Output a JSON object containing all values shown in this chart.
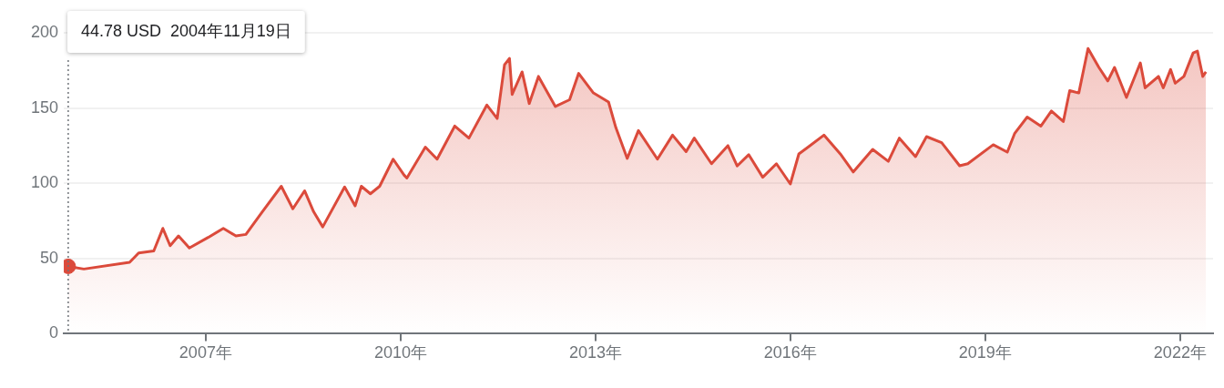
{
  "chart_data": {
    "type": "area",
    "x": [
      "2004-11-19",
      "2005-02-15",
      "2005-10-30",
      "2005-12-20",
      "2006-03-15",
      "2006-05-05",
      "2006-06-15",
      "2006-08-01",
      "2006-10-01",
      "2007-01-15",
      "2007-04-10",
      "2007-06-20",
      "2007-08-15",
      "2007-11-15",
      "2008-03-01",
      "2008-05-05",
      "2008-07-10",
      "2008-08-30",
      "2008-10-20",
      "2009-02-20",
      "2009-04-20",
      "2009-05-25",
      "2009-07-15",
      "2009-09-05",
      "2009-11-20",
      "2010-01-20",
      "2010-02-05",
      "2010-05-20",
      "2010-07-25",
      "2010-11-01",
      "2011-01-20",
      "2011-05-01",
      "2011-06-28",
      "2011-08-08",
      "2011-09-05",
      "2011-09-20",
      "2011-11-15",
      "2011-12-25",
      "2012-02-15",
      "2012-05-20",
      "2012-08-08",
      "2012-09-28",
      "2012-12-20",
      "2013-03-15",
      "2013-04-25",
      "2013-06-28",
      "2013-08-30",
      "2013-12-15",
      "2014-03-10",
      "2014-05-25",
      "2014-07-10",
      "2014-10-15",
      "2015-01-15",
      "2015-03-08",
      "2015-05-12",
      "2015-07-30",
      "2015-10-15",
      "2016-01-01",
      "2016-02-18",
      "2016-04-10",
      "2016-07-08",
      "2016-10-08",
      "2016-12-20",
      "2017-04-08",
      "2017-07-05",
      "2017-09-05",
      "2017-12-05",
      "2018-02-05",
      "2018-05-01",
      "2018-08-10",
      "2018-09-25",
      "2019-02-15",
      "2019-05-05",
      "2019-06-15",
      "2019-08-25",
      "2019-11-10",
      "2020-01-08",
      "2020-03-15",
      "2020-04-20",
      "2020-06-10",
      "2020-08-01",
      "2020-10-01",
      "2020-11-20",
      "2020-12-28",
      "2021-03-05",
      "2021-05-22",
      "2021-06-18",
      "2021-09-01",
      "2021-09-28",
      "2021-11-08",
      "2021-12-04",
      "2022-01-22",
      "2022-03-15",
      "2022-04-08",
      "2022-05-08",
      "2022-05-26"
    ],
    "series": [
      {
        "color": "#db4a3b",
        "values": [
          44.78,
          43,
          47.5,
          53.7,
          55,
          70,
          58.5,
          65,
          57,
          64,
          70,
          65,
          66,
          81,
          98,
          83,
          95,
          81,
          71,
          97.5,
          85,
          98,
          93,
          98,
          116,
          105.5,
          103.5,
          124,
          116,
          138,
          130,
          152,
          143,
          178.7,
          183,
          159,
          174,
          153,
          171,
          151,
          155.5,
          173,
          160,
          154,
          137,
          116.5,
          135,
          116,
          132,
          121,
          130,
          113,
          125,
          111.5,
          119,
          104,
          113,
          99.5,
          119.5,
          124,
          132,
          119.5,
          107.5,
          122.5,
          114.6,
          130,
          117.7,
          131,
          127,
          111.6,
          113,
          125.6,
          120.7,
          133,
          144,
          138,
          148,
          141,
          161.6,
          160,
          189.6,
          177,
          168,
          177,
          157,
          180,
          163.4,
          171,
          163.4,
          175.6,
          166.5,
          171,
          186.6,
          187.8,
          171,
          174
        ]
      },
      {
        "type": "scatter",
        "color": "#db4a3b",
        "x": [
          "2004-11-19"
        ],
        "values": [
          44.78
        ],
        "marker": "circle"
      }
    ],
    "xlim": [
      "2004-10-25",
      "2022-07-05"
    ],
    "xticks": [
      {
        "value": "2007-01-01",
        "label": "2007年"
      },
      {
        "value": "2010-01-01",
        "label": "2010年"
      },
      {
        "value": "2013-01-01",
        "label": "2013年"
      },
      {
        "value": "2016-01-01",
        "label": "2016年"
      },
      {
        "value": "2019-01-01",
        "label": "2019年"
      },
      {
        "value": "2022-01-01",
        "label": "2022年"
      }
    ],
    "ylim": [
      0,
      200
    ],
    "yticks": [
      0,
      50,
      100,
      150,
      200
    ],
    "grid": "y",
    "legend": false,
    "marker": "none",
    "ref_lines": [
      {
        "axis": "x",
        "value": "2004-11-19",
        "color": "#70757a",
        "line_style": "dotted"
      }
    ],
    "annotations": [
      "44.78 USD  2004年11月19日"
    ]
  }
}
